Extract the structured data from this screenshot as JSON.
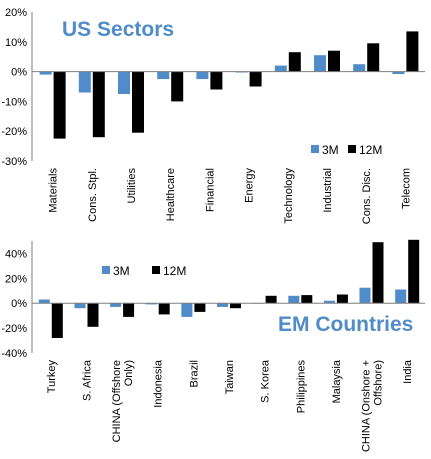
{
  "colors": {
    "series_3m": "#4F8CC9",
    "series_12m": "#000000",
    "title": "#4F8CC9",
    "axis": "#7f7f7f"
  },
  "chart_data": [
    {
      "type": "bar",
      "title": "US Sectors",
      "categories": [
        "Materials",
        "Cons. Stpl.",
        "Utilities",
        "Healthcare",
        "Financial",
        "Energy",
        "Technology",
        "Industrial",
        "Cons. Disc.",
        "Telecom"
      ],
      "series": [
        {
          "name": "3M",
          "values": [
            -1,
            -7,
            -7.5,
            -2.5,
            -2.5,
            -0.3,
            2,
            5.5,
            2.5,
            -0.8
          ]
        },
        {
          "name": "12M",
          "values": [
            -22.5,
            -22,
            -20.5,
            -10,
            -6,
            -5,
            6.5,
            7,
            9.5,
            13.5
          ]
        }
      ],
      "ylim": [
        -30,
        20
      ],
      "yticks": [
        "20%",
        "10%",
        "0%",
        "-10%",
        "-20%",
        "-30%"
      ],
      "ytick_values": [
        20,
        10,
        0,
        -10,
        -20,
        -30
      ],
      "legend": "lower-right"
    },
    {
      "type": "bar",
      "title": "EM Countries",
      "categories": [
        "Turkey",
        "S. Africa",
        "CHINA (Offshore Only)",
        "Indonesia",
        "Brazil",
        "Taiwan",
        "S. Korea",
        "Philippines",
        "Malaysia",
        "CHINA (Onshore + Offshore)",
        "India"
      ],
      "series": [
        {
          "name": "3M",
          "values": [
            3,
            -4,
            -3,
            -1,
            -11,
            -3,
            0,
            6,
            2,
            12.5,
            11
          ]
        },
        {
          "name": "12M",
          "values": [
            -28,
            -19,
            -11,
            -9,
            -7,
            -4,
            6,
            6.5,
            7,
            49,
            51
          ]
        }
      ],
      "ylim": [
        -40,
        50
      ],
      "yticks": [
        "40%",
        "20%",
        "0%",
        "-20%",
        "-40%"
      ],
      "ytick_values": [
        40,
        20,
        0,
        -20,
        -40
      ],
      "legend": "top-left"
    }
  ]
}
